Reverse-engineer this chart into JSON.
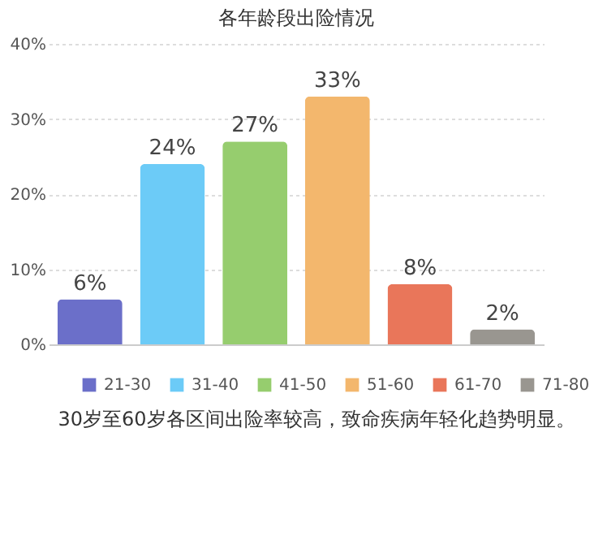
{
  "chart_data": {
    "type": "bar",
    "title": "各年龄段出险情况",
    "categories": [
      null,
      null,
      null,
      null,
      null,
      null
    ],
    "series": [
      {
        "name": "21-30",
        "color": "#6b6fc9",
        "values": [
          6,
          null,
          null,
          null,
          null,
          null
        ],
        "value_labels": [
          "6%",
          null,
          null,
          null,
          null,
          null
        ]
      },
      {
        "name": "31-40",
        "color": "#6ccbf7",
        "values": [
          null,
          24,
          null,
          null,
          null,
          null
        ],
        "value_labels": [
          null,
          "24%",
          null,
          null,
          null,
          null
        ]
      },
      {
        "name": "41-50",
        "color": "#96cd6e",
        "values": [
          null,
          null,
          27,
          null,
          null,
          null
        ],
        "value_labels": [
          null,
          null,
          "27%",
          null,
          null,
          null
        ]
      },
      {
        "name": "51-60",
        "color": "#f3b76d",
        "values": [
          null,
          null,
          null,
          33,
          null,
          null
        ],
        "value_labels": [
          null,
          null,
          null,
          "33%",
          null,
          null
        ]
      },
      {
        "name": "61-70",
        "color": "#e9765a",
        "values": [
          null,
          null,
          null,
          null,
          8,
          null
        ],
        "value_labels": [
          null,
          null,
          null,
          null,
          "8%",
          null
        ]
      },
      {
        "name": "71-80",
        "color": "#999690",
        "values": [
          null,
          null,
          null,
          null,
          null,
          2
        ],
        "value_labels": [
          null,
          null,
          null,
          null,
          null,
          "2%"
        ]
      }
    ],
    "ylim": [
      0,
      40
    ],
    "yticks": [
      {
        "value": 0,
        "label": "0%"
      },
      {
        "value": 10,
        "label": "10%"
      },
      {
        "value": 20,
        "label": "20%"
      },
      {
        "value": 30,
        "label": "30%"
      },
      {
        "value": 40,
        "label": "40%"
      }
    ],
    "grid": "y",
    "legend": "bottom",
    "tick_labels": "y",
    "annotations": [
      "30岁至60岁各区间出险率较高，致命疾病年轻化趋势明显。"
    ]
  }
}
